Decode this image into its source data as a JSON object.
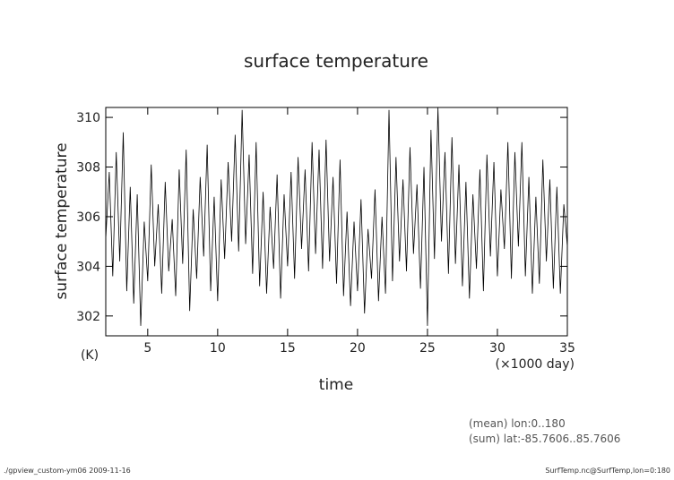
{
  "chart_data": {
    "type": "line",
    "title": "surface temperature",
    "y_label": "surface temperature",
    "y_unit": "(K)",
    "x_label": "time",
    "x_unit": "(×1000 day)",
    "notes": [
      "(mean) lon:0..180",
      "(sum) lat:-85.7606..85.7606"
    ],
    "footer_left": "./gpview_custom-ym06  2009-11-16",
    "footer_right": "SurfTemp.nc@SurfTemp,lon=0:180",
    "xlim": [
      2,
      35
    ],
    "ylim": [
      301.2,
      310.4
    ],
    "xticks": [
      5,
      10,
      15,
      20,
      25,
      30,
      35
    ],
    "yticks": [
      302,
      304,
      306,
      308,
      310
    ],
    "grid": false,
    "color": "#000000",
    "x": [
      2,
      2.25,
      2.5,
      2.75,
      3,
      3.25,
      3.5,
      3.75,
      4,
      4.25,
      4.5,
      4.75,
      5,
      5.25,
      5.5,
      5.75,
      6,
      6.25,
      6.5,
      6.75,
      7,
      7.25,
      7.5,
      7.75,
      8,
      8.25,
      8.5,
      8.75,
      9,
      9.25,
      9.5,
      9.75,
      10,
      10.25,
      10.5,
      10.75,
      11,
      11.25,
      11.5,
      11.75,
      12,
      12.25,
      12.5,
      12.75,
      13,
      13.25,
      13.5,
      13.75,
      14,
      14.25,
      14.5,
      14.75,
      15,
      15.25,
      15.5,
      15.75,
      16,
      16.25,
      16.5,
      16.75,
      17,
      17.25,
      17.5,
      17.75,
      18,
      18.25,
      18.5,
      18.75,
      19,
      19.25,
      19.5,
      19.75,
      20,
      20.25,
      20.5,
      20.75,
      21,
      21.25,
      21.5,
      21.75,
      22,
      22.25,
      22.5,
      22.75,
      23,
      23.25,
      23.5,
      23.75,
      24,
      24.25,
      24.5,
      24.75,
      25,
      25.25,
      25.5,
      25.75,
      26,
      26.25,
      26.5,
      26.75,
      27,
      27.25,
      27.5,
      27.75,
      28,
      28.25,
      28.5,
      28.75,
      29,
      29.25,
      29.5,
      29.75,
      30,
      30.25,
      30.5,
      30.75,
      31,
      31.25,
      31.5,
      31.75,
      32,
      32.25,
      32.5,
      32.75,
      33,
      33.25,
      33.5,
      33.75,
      34,
      34.25,
      34.5,
      34.75,
      35
    ],
    "values": [
      305.1,
      307.8,
      303.6,
      308.6,
      304.2,
      309.4,
      303.0,
      307.2,
      302.5,
      306.9,
      301.6,
      305.8,
      303.4,
      308.1,
      304.0,
      306.5,
      302.9,
      307.4,
      303.8,
      305.9,
      302.8,
      307.9,
      304.1,
      308.7,
      302.2,
      306.3,
      303.5,
      307.6,
      304.4,
      308.9,
      303.0,
      306.8,
      302.6,
      307.5,
      304.3,
      308.2,
      305.0,
      309.3,
      304.6,
      310.3,
      304.9,
      308.5,
      303.7,
      309.0,
      303.2,
      307.0,
      302.9,
      306.4,
      303.9,
      307.7,
      302.7,
      306.9,
      304.0,
      307.8,
      303.5,
      308.4,
      304.7,
      307.9,
      303.8,
      309.0,
      304.5,
      308.7,
      303.9,
      309.1,
      304.2,
      307.6,
      303.3,
      308.3,
      302.8,
      306.2,
      302.4,
      305.8,
      303.0,
      306.7,
      302.1,
      305.5,
      303.5,
      307.1,
      302.6,
      306.0,
      302.9,
      310.3,
      303.4,
      308.4,
      304.2,
      307.5,
      303.8,
      308.8,
      304.5,
      307.3,
      303.1,
      308.0,
      301.6,
      309.5,
      304.3,
      310.4,
      305.0,
      308.6,
      303.7,
      309.2,
      304.1,
      308.1,
      303.2,
      307.4,
      302.7,
      306.9,
      303.9,
      307.9,
      303.0,
      308.5,
      304.4,
      308.2,
      303.6,
      307.1,
      304.7,
      309.0,
      303.5,
      308.6,
      304.8,
      309.0,
      303.6,
      307.6,
      302.9,
      306.8,
      303.3,
      308.3,
      304.2,
      307.5,
      303.1,
      307.2,
      302.9,
      306.5,
      304.8
    ]
  }
}
